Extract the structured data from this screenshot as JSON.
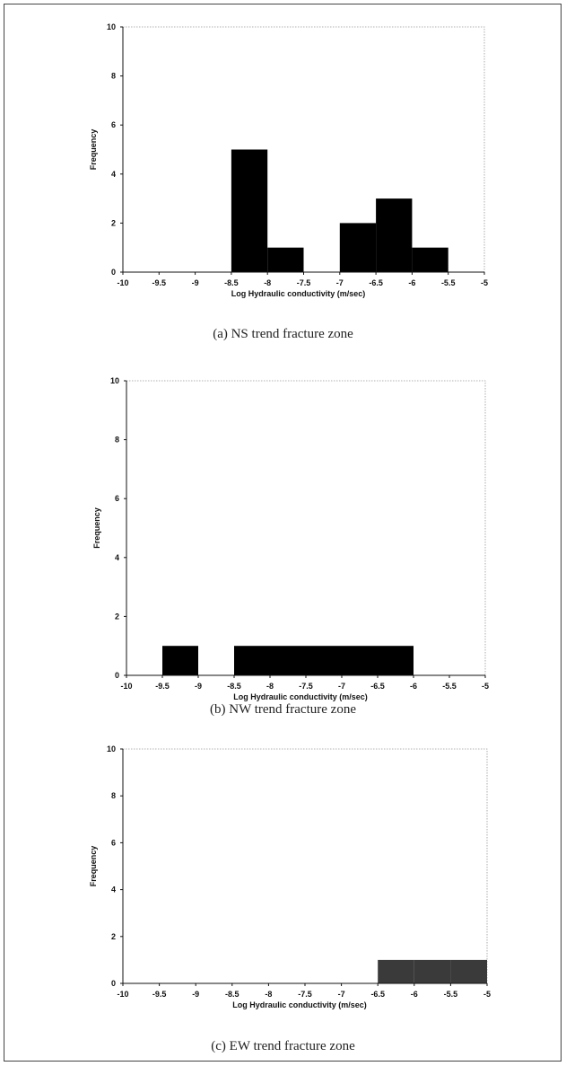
{
  "chart_data": [
    {
      "type": "bar",
      "caption": "(a) NS trend fracture zone",
      "xlabel": "Log Hydraulic conductivity (m/sec)",
      "ylabel": "Frequency",
      "xlim": [
        -10,
        -5
      ],
      "ylim": [
        0,
        10
      ],
      "xticks": [
        "-10",
        "-9.5",
        "-9",
        "-8.5",
        "-8",
        "-7.5",
        "-7",
        "-6.5",
        "-6",
        "-5.5",
        "-5"
      ],
      "yticks": [
        "0",
        "2",
        "4",
        "6",
        "8",
        "10"
      ],
      "bin_width": 0.5,
      "bins": [
        {
          "x0": -8.5,
          "value": 5
        },
        {
          "x0": -8.0,
          "value": 1
        },
        {
          "x0": -7.0,
          "value": 2
        },
        {
          "x0": -6.5,
          "value": 3
        },
        {
          "x0": -6.0,
          "value": 1
        }
      ],
      "bar_color": "#000000"
    },
    {
      "type": "bar",
      "caption": "(b) NW trend fracture zone",
      "xlabel": "Log Hydraulic conductivity (m/sec)",
      "ylabel": "Frequency",
      "xlim": [
        -10,
        -5
      ],
      "ylim": [
        0,
        10
      ],
      "xticks": [
        "-10",
        "-9.5",
        "-9",
        "-8.5",
        "-8",
        "-7.5",
        "-7",
        "-6.5",
        "-6",
        "-5.5",
        "-5"
      ],
      "yticks": [
        "0",
        "2",
        "4",
        "6",
        "8",
        "10"
      ],
      "bin_width": 0.5,
      "bins": [
        {
          "x0": -9.5,
          "value": 1
        },
        {
          "x0": -8.5,
          "value": 1
        },
        {
          "x0": -8.0,
          "value": 1
        },
        {
          "x0": -7.5,
          "value": 1
        },
        {
          "x0": -7.0,
          "value": 1
        },
        {
          "x0": -6.5,
          "value": 1
        }
      ],
      "bar_color": "#000000"
    },
    {
      "type": "bar",
      "caption": "(c) EW trend fracture zone",
      "xlabel": "Log Hydraulic conductivity (m/sec)",
      "ylabel": "Frequency",
      "xlim": [
        -10,
        -5
      ],
      "ylim": [
        0,
        10
      ],
      "xticks": [
        "-10",
        "-9.5",
        "-9",
        "-8.5",
        "-8",
        "-7.5",
        "-7",
        "-6.5",
        "-6",
        "-5.5",
        "-5"
      ],
      "yticks": [
        "0",
        "2",
        "4",
        "6",
        "8",
        "10"
      ],
      "bin_width": 0.5,
      "bins": [
        {
          "x0": -6.5,
          "value": 1
        },
        {
          "x0": -6.0,
          "value": 1
        },
        {
          "x0": -5.5,
          "value": 1
        }
      ],
      "bar_color": "#3a3a3a"
    }
  ]
}
